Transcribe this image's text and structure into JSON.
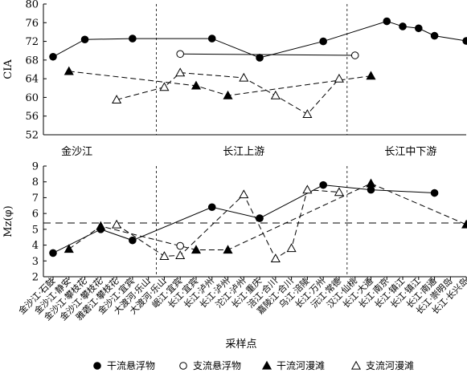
{
  "chart_data": {
    "type": "line",
    "categories": [
      "金沙江·石鼓",
      "金沙江·静安",
      "金沙江·攀枝花",
      "金沙江·攀枝花",
      "雅砻江·攀枝花",
      "金沙江·宜宾",
      "大渡河·乐山",
      "大渡河·乐山",
      "岷江·宜宾",
      "长江·宜宾",
      "长江·泸州",
      "长江·泸州",
      "沱江·泸州",
      "长江·重庆",
      "涪江·合川",
      "嘉陵江·合川",
      "乌江·涪陵",
      "长江·万州",
      "沅江·常德",
      "汉江·仙桃",
      "长江·大通",
      "长江·南京",
      "长江·镇江",
      "长江·镇江",
      "长江·南通",
      "长江·崇明岛",
      "长江·长兴岛"
    ],
    "x_title": "采样点",
    "regions": [
      "金沙江",
      "长江上游",
      "长江中下游"
    ],
    "legend_position": "bottom",
    "legend": {
      "trunk_sediment": "干流悬浮物",
      "tributary_sediment": "支流悬浮物",
      "trunk_beach": "干流河漫滩",
      "tributary_beach": "支流河漫滩"
    },
    "panels": [
      {
        "ylabel": "CIA",
        "ylim": [
          52,
          80
        ],
        "yticks": [
          52,
          56,
          60,
          64,
          68,
          72,
          76,
          80
        ],
        "region_dividers": [
          6.5,
          18.5
        ],
        "series": [
          {
            "key": "trunk_sediment",
            "marker": "circle-filled",
            "line": "solid",
            "points": [
              [
                0,
                68.7
              ],
              [
                2,
                72.4
              ],
              [
                5,
                72.6
              ],
              [
                10,
                72.6
              ],
              [
                13,
                68.5
              ],
              [
                17,
                72.0
              ],
              [
                21,
                76.3
              ],
              [
                22,
                75.2
              ],
              [
                23,
                74.8
              ],
              [
                24,
                73.2
              ],
              [
                26,
                72.1
              ]
            ]
          },
          {
            "key": "tributary_sediment",
            "marker": "circle-open",
            "line": "solid",
            "points": [
              [
                8,
                69.3
              ],
              [
                19,
                69.0
              ]
            ]
          },
          {
            "key": "trunk_beach",
            "marker": "triangle-filled",
            "line": "dashed",
            "points": [
              [
                1,
                65.6
              ],
              [
                9,
                62.5
              ],
              [
                11,
                60.4
              ],
              [
                20,
                64.6
              ]
            ]
          },
          {
            "key": "tributary_beach",
            "marker": "triangle-open",
            "line": "dashed",
            "points": [
              [
                4,
                59.5
              ],
              [
                7,
                62.2
              ],
              [
                8,
                65.3
              ],
              [
                12,
                64.2
              ],
              [
                14,
                60.4
              ],
              [
                16,
                56.4
              ],
              [
                18,
                64.0
              ]
            ]
          }
        ]
      },
      {
        "ylabel": "Mz(φ)",
        "ylim": [
          2,
          9
        ],
        "yticks": [
          2,
          3,
          4,
          5,
          6,
          7,
          8,
          9
        ],
        "reference_line": 5.4,
        "region_dividers": [
          6.5,
          18.5
        ],
        "series": [
          {
            "key": "trunk_sediment",
            "marker": "circle-filled",
            "line": "solid",
            "points": [
              [
                0,
                3.5
              ],
              [
                3,
                5.0
              ],
              [
                5,
                4.3
              ],
              [
                10,
                6.4
              ],
              [
                13,
                5.7
              ],
              [
                17,
                7.8
              ],
              [
                20,
                7.5
              ],
              [
                24,
                7.3
              ]
            ]
          },
          {
            "key": "tributary_sediment",
            "marker": "circle-open",
            "line": "solid",
            "points": [
              [
                8,
                3.95
              ]
            ]
          },
          {
            "key": "trunk_beach",
            "marker": "triangle-filled",
            "line": "dashed",
            "points": [
              [
                1,
                3.75
              ],
              [
                3,
                5.2
              ],
              [
                9,
                3.7
              ],
              [
                11,
                3.7
              ],
              [
                20,
                7.9
              ],
              [
                26,
                5.3
              ]
            ]
          },
          {
            "key": "tributary_beach",
            "marker": "triangle-open",
            "line": "dashed",
            "points": [
              [
                4,
                5.3
              ],
              [
                7,
                3.3
              ],
              [
                8,
                3.35
              ],
              [
                12,
                7.2
              ],
              [
                14,
                3.15
              ],
              [
                15,
                3.8
              ],
              [
                16,
                7.5
              ],
              [
                18,
                7.35
              ]
            ]
          }
        ]
      }
    ]
  }
}
